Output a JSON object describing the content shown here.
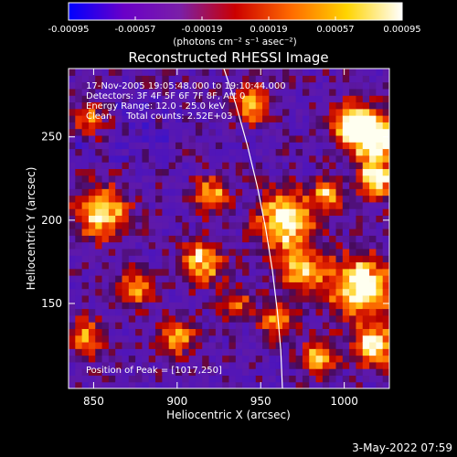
{
  "chart_data": {
    "type": "heatmap",
    "title": "Reconstructed RHESSI Image",
    "xlabel": "Heliocentric X (arcsec)",
    "ylabel": "Heliocentric Y (arcsec)",
    "xlim": [
      835,
      1027
    ],
    "ylim": [
      99,
      291
    ],
    "xticks": [
      850,
      900,
      950,
      1000
    ],
    "yticks": [
      150,
      200,
      250
    ],
    "colorbar": {
      "min": -0.00095,
      "max": 0.00095,
      "ticks": [
        "-0.00095",
        "-0.00057",
        "-0.00019",
        "0.00019",
        "0.00057",
        "0.00095"
      ],
      "label": "(photons cm⁻² s⁻¹ asec⁻²)",
      "colors": [
        "#0000ff",
        "#6a00c8",
        "#7a1fa8",
        "#cc0000",
        "#ff6a00",
        "#ffd400",
        "#ffffff"
      ]
    },
    "annotations": [
      "17-Nov-2005 19:05:48.000 to 19:10:44.000",
      "Detectors: 3F 4F 5F 6F 7F 8F, Att 0",
      "Energy Range: 12.0 - 25.0 keV",
      "Clean     Total counts: 2.52E+03"
    ],
    "peak_label": "Position of Peak = [1017,250]",
    "peak_position": [
      1017,
      250
    ],
    "limb_curve": {
      "x": [
        928,
        935,
        942,
        948,
        953,
        957,
        960,
        962,
        963
      ],
      "y": [
        291,
        270,
        245,
        220,
        195,
        170,
        145,
        122,
        99
      ]
    },
    "hotspots": [
      {
        "x": 1017,
        "y": 250,
        "sigma": 9,
        "amp": 1.0
      },
      {
        "x": 1005,
        "y": 258,
        "sigma": 8,
        "amp": 0.85
      },
      {
        "x": 1020,
        "y": 225,
        "sigma": 8,
        "amp": 0.7
      },
      {
        "x": 1010,
        "y": 160,
        "sigma": 12,
        "amp": 0.85
      },
      {
        "x": 1018,
        "y": 125,
        "sigma": 8,
        "amp": 0.75
      },
      {
        "x": 985,
        "y": 118,
        "sigma": 7,
        "amp": 0.55
      },
      {
        "x": 965,
        "y": 200,
        "sigma": 11,
        "amp": 0.8
      },
      {
        "x": 975,
        "y": 170,
        "sigma": 9,
        "amp": 0.65
      },
      {
        "x": 960,
        "y": 140,
        "sigma": 7,
        "amp": 0.5
      },
      {
        "x": 945,
        "y": 270,
        "sigma": 7,
        "amp": 0.6
      },
      {
        "x": 920,
        "y": 215,
        "sigma": 7,
        "amp": 0.55
      },
      {
        "x": 915,
        "y": 175,
        "sigma": 8,
        "amp": 0.65
      },
      {
        "x": 900,
        "y": 130,
        "sigma": 7,
        "amp": 0.55
      },
      {
        "x": 855,
        "y": 205,
        "sigma": 10,
        "amp": 0.75
      },
      {
        "x": 875,
        "y": 160,
        "sigma": 7,
        "amp": 0.55
      },
      {
        "x": 845,
        "y": 130,
        "sigma": 7,
        "amp": 0.5
      },
      {
        "x": 848,
        "y": 262,
        "sigma": 7,
        "amp": 0.45
      },
      {
        "x": 990,
        "y": 215,
        "sigma": 6,
        "amp": 0.5
      },
      {
        "x": 935,
        "y": 150,
        "sigma": 6,
        "amp": 0.4
      }
    ]
  },
  "footer": {
    "date": "3-May-2022 07:59"
  }
}
